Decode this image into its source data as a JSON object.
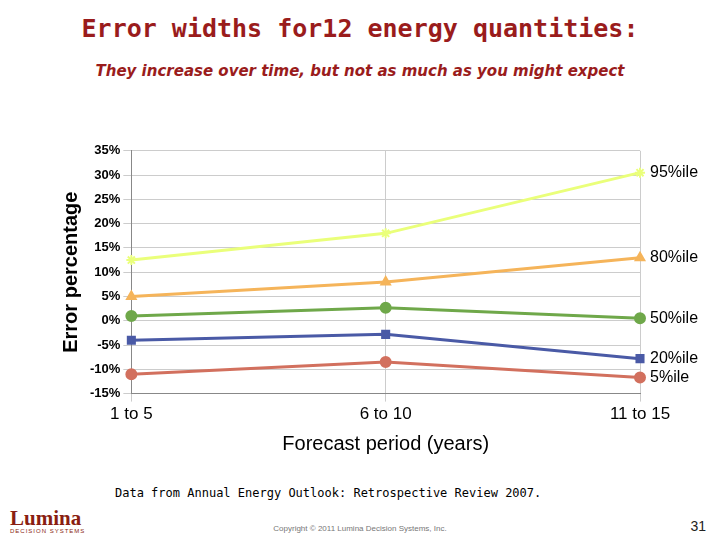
{
  "chart_data": {
    "type": "line",
    "title": "Error widths for12 energy quantities:",
    "subtitle": "They increase over time, but not as much as you might expect",
    "x_label": "Forecast period (years)",
    "y_label": "Error percentage",
    "categories": [
      "1 to 5",
      "6 to 10",
      "11 to 15"
    ],
    "series": [
      {
        "name": "95%ile",
        "color": "#eaff7a",
        "marker": "star",
        "values": [
          12.5,
          18,
          30.5
        ]
      },
      {
        "name": "80%ile",
        "color": "#f5b45a",
        "marker": "triangle",
        "values": [
          5,
          8,
          13
        ]
      },
      {
        "name": "50%ile",
        "color": "#6fa84a",
        "marker": "circle",
        "values": [
          1,
          2.7,
          0.5
        ]
      },
      {
        "name": "20%ile",
        "color": "#4a5aa6",
        "marker": "rect",
        "values": [
          -4,
          -2.8,
          -7.8
        ]
      },
      {
        "name": "5%ile",
        "color": "#d2705e",
        "marker": "circle",
        "values": [
          -11,
          -8.5,
          -11.7
        ]
      }
    ],
    "ylim": [
      -15,
      35
    ],
    "yticks": [
      {
        "value": -15,
        "label": "-15%"
      },
      {
        "value": -10,
        "label": "-10%"
      },
      {
        "value": -5,
        "label": "-5%"
      },
      {
        "value": 0,
        "label": "0%"
      },
      {
        "value": 5,
        "label": "5%"
      },
      {
        "value": 10,
        "label": "10%"
      },
      {
        "value": 15,
        "label": "15%"
      },
      {
        "value": 20,
        "label": "20%"
      },
      {
        "value": 25,
        "label": "25%"
      },
      {
        "value": 30,
        "label": "30%"
      },
      {
        "value": 35,
        "label": "35%"
      }
    ],
    "grid": true,
    "annotations": [
      "Data from Annual Energy Outlook: Retrospective Review 2007."
    ]
  },
  "slide": {
    "copyright": "Copyright © 2011 Lumina Decision Systems, Inc.",
    "page_number": 31,
    "logo": {
      "name": "Lumina",
      "tagline": "DECISION SYSTEMS"
    }
  }
}
